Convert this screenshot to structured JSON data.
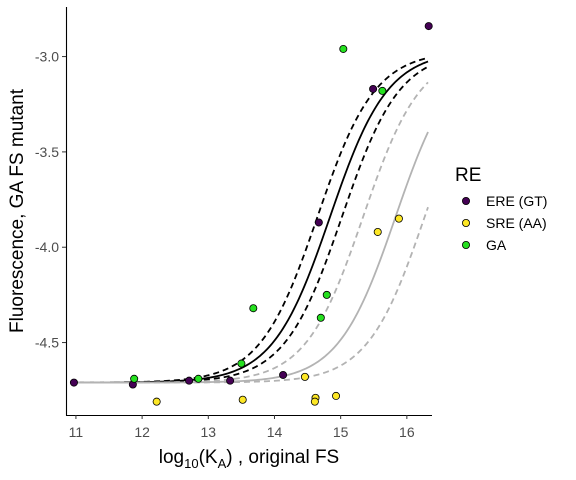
{
  "chart_data": {
    "type": "scatter",
    "xlabel": {
      "base": "log",
      "sub": "10",
      "mid": "(K",
      "sub2": "A",
      "tail": ") , original FS"
    },
    "ylabel": "Fluorescence, GA FS mutant",
    "xlim": [
      10.85,
      16.38
    ],
    "ylim": [
      -4.88,
      -2.74
    ],
    "x_ticks": [
      11,
      12,
      13,
      14,
      15,
      16
    ],
    "y_ticks": [
      -3.0,
      -3.5,
      -4.0,
      -4.5
    ],
    "y_tick_labels": [
      "-3.0",
      "-3.5",
      "-4.0",
      "-4.5"
    ],
    "grid": false,
    "legend": {
      "title": "RE",
      "placement": "right",
      "entries": [
        {
          "label": "ERE (GT)",
          "color": "#440154"
        },
        {
          "label": "SRE (AA)",
          "color": "#fde725"
        },
        {
          "label": "GA",
          "color": "#25e01f"
        }
      ]
    },
    "series": [
      {
        "name": "ERE (GT)",
        "color": "#440154",
        "points": [
          [
            10.97,
            -4.71
          ],
          [
            11.86,
            -4.72
          ],
          [
            12.71,
            -4.7
          ],
          [
            13.33,
            -4.7
          ],
          [
            14.13,
            -4.67
          ],
          [
            14.67,
            -3.87
          ],
          [
            15.49,
            -3.17
          ],
          [
            16.33,
            -2.84
          ]
        ]
      },
      {
        "name": "SRE (AA)",
        "color": "#fde725",
        "points": [
          [
            12.22,
            -4.81
          ],
          [
            13.52,
            -4.8
          ],
          [
            14.46,
            -4.68
          ],
          [
            14.62,
            -4.79
          ],
          [
            14.61,
            -4.81
          ],
          [
            14.93,
            -4.78
          ],
          [
            15.56,
            -3.92
          ],
          [
            15.88,
            -3.85
          ]
        ]
      },
      {
        "name": "GA",
        "color": "#25e01f",
        "points": [
          [
            11.88,
            -4.69
          ],
          [
            12.85,
            -4.69
          ],
          [
            13.5,
            -4.61
          ],
          [
            13.68,
            -4.32
          ],
          [
            14.7,
            -4.37
          ],
          [
            14.79,
            -4.25
          ],
          [
            15.04,
            -2.96
          ],
          [
            15.63,
            -3.18
          ]
        ]
      }
    ],
    "fits": [
      {
        "color": "#000000",
        "dash": "solid",
        "bottom": -4.71,
        "top": -2.97,
        "x50": 14.84,
        "slope": 2.3
      },
      {
        "color": "#000000",
        "dash": "dashed",
        "bottom": -4.71,
        "top": -2.97,
        "x50": 14.65,
        "slope": 2.3
      },
      {
        "color": "#000000",
        "dash": "dashed",
        "bottom": -4.71,
        "top": -2.97,
        "x50": 15.02,
        "slope": 2.3
      },
      {
        "color": "#b3b3b3",
        "dash": "solid",
        "bottom": -4.71,
        "top": -2.97,
        "x50": 15.83,
        "slope": 2.3
      },
      {
        "color": "#b3b3b3",
        "dash": "dashed",
        "bottom": -4.71,
        "top": -2.97,
        "x50": 15.34,
        "slope": 2.3
      },
      {
        "color": "#b3b3b3",
        "dash": "dashed",
        "bottom": -4.71,
        "top": -2.97,
        "x50": 16.27,
        "slope": 2.3
      }
    ]
  }
}
